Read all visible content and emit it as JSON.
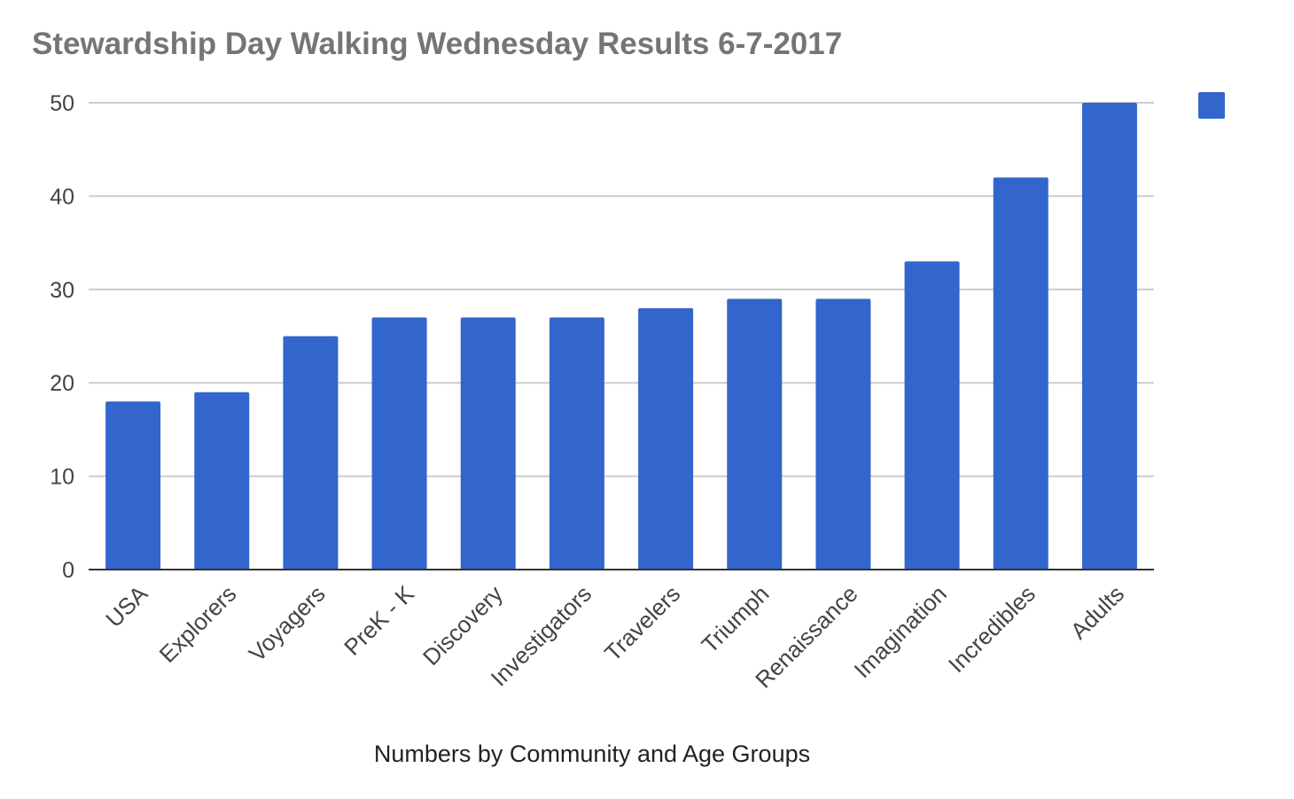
{
  "chart_data": {
    "type": "bar",
    "title": "Stewardship Day Walking Wednesday Results 6-7-2017",
    "xlabel": "Numbers by Community and Age Groups",
    "ylabel": "",
    "categories": [
      "USA",
      "Explorers",
      "Voyagers",
      "PreK - K",
      "Discovery",
      "Investigators",
      "Travelers",
      "Triumph",
      "Renaissance",
      "Imagination",
      "Incredibles",
      "Adults"
    ],
    "series": [
      {
        "color": "#3366cc",
        "values": [
          18,
          19,
          25,
          27,
          27,
          27,
          28,
          29,
          29,
          33,
          42,
          50
        ]
      }
    ],
    "ylim": [
      0,
      50
    ],
    "yticks": [
      "0",
      "10",
      "20",
      "30",
      "40",
      "50"
    ],
    "grid": true,
    "legend": "top-right",
    "colors": {
      "bar": "#3366cc",
      "title": "#757575",
      "grid": "#cccccc",
      "axis": "#333333"
    }
  }
}
